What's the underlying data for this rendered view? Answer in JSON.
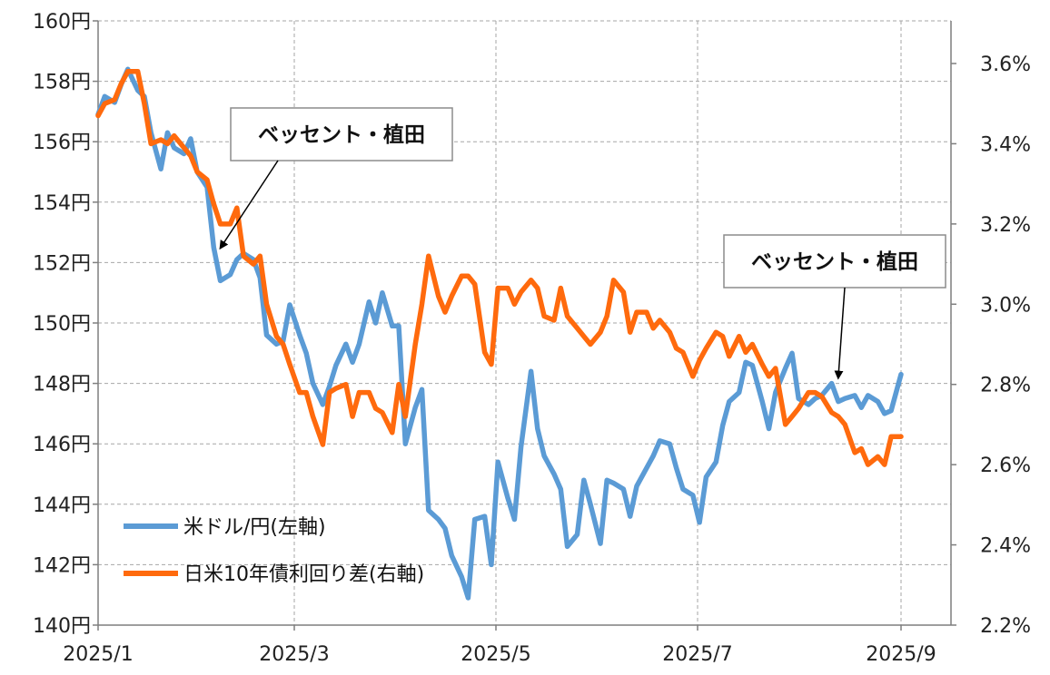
{
  "chart_data": {
    "type": "line",
    "title": "",
    "xlabel": "",
    "ylabel": "",
    "x_ticks": [
      "2025/1",
      "2025/3",
      "2025/5",
      "2025/7",
      "2025/9"
    ],
    "y_left": {
      "min": 140,
      "max": 160,
      "step": 2,
      "tick_labels": [
        "140円",
        "142円",
        "144円",
        "146円",
        "148円",
        "150円",
        "152円",
        "154円",
        "156円",
        "158円",
        "160円"
      ]
    },
    "y_right": {
      "min": 2.2,
      "max": 3.7,
      "step": 0.2,
      "tick_labels": [
        "2.2%",
        "2.4%",
        "2.6%",
        "2.8%",
        "3.0%",
        "3.2%",
        "3.4%",
        "3.6%"
      ]
    },
    "grid": "dashed",
    "legend_position": "bottom-left",
    "series": [
      {
        "name": "米ドル/円(左軸)",
        "axis": "left",
        "color": "#5b9bd5",
        "points": [
          [
            "2025-01-01",
            156.9
          ],
          [
            "2025-01-03",
            157.5
          ],
          [
            "2025-01-06",
            157.3
          ],
          [
            "2025-01-08",
            157.9
          ],
          [
            "2025-01-10",
            158.4
          ],
          [
            "2025-01-13",
            157.7
          ],
          [
            "2025-01-15",
            157.5
          ],
          [
            "2025-01-17",
            156.3
          ],
          [
            "2025-01-20",
            155.1
          ],
          [
            "2025-01-22",
            156.3
          ],
          [
            "2025-01-24",
            155.8
          ],
          [
            "2025-01-27",
            155.6
          ],
          [
            "2025-01-29",
            156.1
          ],
          [
            "2025-01-31",
            155.0
          ],
          [
            "2025-02-03",
            154.5
          ],
          [
            "2025-02-05",
            152.5
          ],
          [
            "2025-02-07",
            151.4
          ],
          [
            "2025-02-10",
            151.6
          ],
          [
            "2025-02-12",
            152.1
          ],
          [
            "2025-02-14",
            152.3
          ],
          [
            "2025-02-17",
            152.1
          ],
          [
            "2025-02-19",
            151.5
          ],
          [
            "2025-02-21",
            149.6
          ],
          [
            "2025-02-24",
            149.3
          ],
          [
            "2025-02-26",
            149.4
          ],
          [
            "2025-02-28",
            150.6
          ],
          [
            "2025-03-03",
            149.6
          ],
          [
            "2025-03-05",
            149.0
          ],
          [
            "2025-03-07",
            148.0
          ],
          [
            "2025-03-10",
            147.3
          ],
          [
            "2025-03-12",
            147.9
          ],
          [
            "2025-03-14",
            148.6
          ],
          [
            "2025-03-17",
            149.3
          ],
          [
            "2025-03-19",
            148.7
          ],
          [
            "2025-03-21",
            149.3
          ],
          [
            "2025-03-24",
            150.7
          ],
          [
            "2025-03-26",
            150.0
          ],
          [
            "2025-03-28",
            151.0
          ],
          [
            "2025-03-31",
            149.9
          ],
          [
            "2025-04-02",
            149.9
          ],
          [
            "2025-04-04",
            146.0
          ],
          [
            "2025-04-07",
            147.2
          ],
          [
            "2025-04-09",
            147.8
          ],
          [
            "2025-04-11",
            143.8
          ],
          [
            "2025-04-14",
            143.5
          ],
          [
            "2025-04-16",
            143.2
          ],
          [
            "2025-04-18",
            142.3
          ],
          [
            "2025-04-21",
            141.6
          ],
          [
            "2025-04-23",
            140.9
          ],
          [
            "2025-04-25",
            143.5
          ],
          [
            "2025-04-28",
            143.6
          ],
          [
            "2025-04-30",
            142.0
          ],
          [
            "2025-05-02",
            145.4
          ],
          [
            "2025-05-05",
            144.2
          ],
          [
            "2025-05-07",
            143.5
          ],
          [
            "2025-05-09",
            145.9
          ],
          [
            "2025-05-12",
            148.4
          ],
          [
            "2025-05-14",
            146.5
          ],
          [
            "2025-05-16",
            145.6
          ],
          [
            "2025-05-19",
            145.0
          ],
          [
            "2025-05-21",
            144.5
          ],
          [
            "2025-05-23",
            142.6
          ],
          [
            "2025-05-26",
            143.0
          ],
          [
            "2025-05-28",
            144.8
          ],
          [
            "2025-05-30",
            144.0
          ],
          [
            "2025-06-02",
            142.7
          ],
          [
            "2025-06-04",
            144.8
          ],
          [
            "2025-06-06",
            144.7
          ],
          [
            "2025-06-09",
            144.5
          ],
          [
            "2025-06-11",
            143.6
          ],
          [
            "2025-06-13",
            144.6
          ],
          [
            "2025-06-16",
            145.2
          ],
          [
            "2025-06-18",
            145.6
          ],
          [
            "2025-06-20",
            146.1
          ],
          [
            "2025-06-23",
            146.0
          ],
          [
            "2025-06-25",
            145.2
          ],
          [
            "2025-06-27",
            144.5
          ],
          [
            "2025-06-30",
            144.3
          ],
          [
            "2025-07-02",
            143.4
          ],
          [
            "2025-07-04",
            144.9
          ],
          [
            "2025-07-07",
            145.4
          ],
          [
            "2025-07-09",
            146.6
          ],
          [
            "2025-07-11",
            147.4
          ],
          [
            "2025-07-14",
            147.7
          ],
          [
            "2025-07-16",
            148.7
          ],
          [
            "2025-07-18",
            148.6
          ],
          [
            "2025-07-21",
            147.4
          ],
          [
            "2025-07-23",
            146.5
          ],
          [
            "2025-07-25",
            147.7
          ],
          [
            "2025-07-28",
            148.5
          ],
          [
            "2025-07-30",
            149.0
          ],
          [
            "2025-08-01",
            147.5
          ],
          [
            "2025-08-04",
            147.3
          ],
          [
            "2025-08-06",
            147.5
          ],
          [
            "2025-08-08",
            147.6
          ],
          [
            "2025-08-11",
            148.0
          ],
          [
            "2025-08-13",
            147.4
          ],
          [
            "2025-08-15",
            147.5
          ],
          [
            "2025-08-18",
            147.6
          ],
          [
            "2025-08-20",
            147.2
          ],
          [
            "2025-08-22",
            147.6
          ],
          [
            "2025-08-25",
            147.4
          ],
          [
            "2025-08-27",
            147.0
          ],
          [
            "2025-08-29",
            147.1
          ],
          [
            "2025-09-01",
            148.3
          ]
        ]
      },
      {
        "name": "日米10年債利回り差(右軸)",
        "axis": "right",
        "color": "#ff6a0d",
        "points": [
          [
            "2025-01-01",
            3.47
          ],
          [
            "2025-01-03",
            3.5
          ],
          [
            "2025-01-06",
            3.51
          ],
          [
            "2025-01-08",
            3.55
          ],
          [
            "2025-01-10",
            3.58
          ],
          [
            "2025-01-13",
            3.58
          ],
          [
            "2025-01-15",
            3.5
          ],
          [
            "2025-01-17",
            3.4
          ],
          [
            "2025-01-20",
            3.41
          ],
          [
            "2025-01-22",
            3.4
          ],
          [
            "2025-01-24",
            3.42
          ],
          [
            "2025-01-27",
            3.39
          ],
          [
            "2025-01-29",
            3.37
          ],
          [
            "2025-01-31",
            3.33
          ],
          [
            "2025-02-03",
            3.31
          ],
          [
            "2025-02-05",
            3.25
          ],
          [
            "2025-02-07",
            3.2
          ],
          [
            "2025-02-10",
            3.2
          ],
          [
            "2025-02-12",
            3.24
          ],
          [
            "2025-02-14",
            3.12
          ],
          [
            "2025-02-17",
            3.1
          ],
          [
            "2025-02-19",
            3.12
          ],
          [
            "2025-02-21",
            3.0
          ],
          [
            "2025-02-24",
            2.92
          ],
          [
            "2025-02-26",
            2.9
          ],
          [
            "2025-02-28",
            2.85
          ],
          [
            "2025-03-03",
            2.78
          ],
          [
            "2025-03-05",
            2.78
          ],
          [
            "2025-03-07",
            2.72
          ],
          [
            "2025-03-10",
            2.65
          ],
          [
            "2025-03-12",
            2.78
          ],
          [
            "2025-03-14",
            2.79
          ],
          [
            "2025-03-17",
            2.8
          ],
          [
            "2025-03-19",
            2.72
          ],
          [
            "2025-03-21",
            2.78
          ],
          [
            "2025-03-24",
            2.78
          ],
          [
            "2025-03-26",
            2.74
          ],
          [
            "2025-03-28",
            2.73
          ],
          [
            "2025-03-31",
            2.68
          ],
          [
            "2025-04-02",
            2.8
          ],
          [
            "2025-04-04",
            2.72
          ],
          [
            "2025-04-07",
            2.9
          ],
          [
            "2025-04-09",
            3.0
          ],
          [
            "2025-04-11",
            3.12
          ],
          [
            "2025-04-14",
            3.02
          ],
          [
            "2025-04-16",
            2.98
          ],
          [
            "2025-04-18",
            3.02
          ],
          [
            "2025-04-21",
            3.07
          ],
          [
            "2025-04-23",
            3.07
          ],
          [
            "2025-04-25",
            3.05
          ],
          [
            "2025-04-28",
            2.88
          ],
          [
            "2025-04-30",
            2.85
          ],
          [
            "2025-05-02",
            3.04
          ],
          [
            "2025-05-05",
            3.04
          ],
          [
            "2025-05-07",
            3.0
          ],
          [
            "2025-05-09",
            3.03
          ],
          [
            "2025-05-12",
            3.06
          ],
          [
            "2025-05-14",
            3.04
          ],
          [
            "2025-05-16",
            2.97
          ],
          [
            "2025-05-19",
            2.96
          ],
          [
            "2025-05-21",
            3.04
          ],
          [
            "2025-05-23",
            2.97
          ],
          [
            "2025-05-26",
            2.94
          ],
          [
            "2025-05-28",
            2.92
          ],
          [
            "2025-05-30",
            2.9
          ],
          [
            "2025-06-02",
            2.93
          ],
          [
            "2025-06-04",
            2.97
          ],
          [
            "2025-06-06",
            3.06
          ],
          [
            "2025-06-09",
            3.03
          ],
          [
            "2025-06-11",
            2.93
          ],
          [
            "2025-06-13",
            2.98
          ],
          [
            "2025-06-16",
            2.98
          ],
          [
            "2025-06-18",
            2.94
          ],
          [
            "2025-06-20",
            2.96
          ],
          [
            "2025-06-23",
            2.93
          ],
          [
            "2025-06-25",
            2.89
          ],
          [
            "2025-06-27",
            2.88
          ],
          [
            "2025-06-30",
            2.82
          ],
          [
            "2025-07-02",
            2.86
          ],
          [
            "2025-07-04",
            2.89
          ],
          [
            "2025-07-07",
            2.93
          ],
          [
            "2025-07-09",
            2.92
          ],
          [
            "2025-07-11",
            2.87
          ],
          [
            "2025-07-14",
            2.92
          ],
          [
            "2025-07-16",
            2.88
          ],
          [
            "2025-07-18",
            2.9
          ],
          [
            "2025-07-21",
            2.85
          ],
          [
            "2025-07-23",
            2.82
          ],
          [
            "2025-07-25",
            2.84
          ],
          [
            "2025-07-28",
            2.7
          ],
          [
            "2025-07-30",
            2.72
          ],
          [
            "2025-08-01",
            2.74
          ],
          [
            "2025-08-04",
            2.78
          ],
          [
            "2025-08-06",
            2.78
          ],
          [
            "2025-08-08",
            2.77
          ],
          [
            "2025-08-11",
            2.73
          ],
          [
            "2025-08-13",
            2.72
          ],
          [
            "2025-08-15",
            2.7
          ],
          [
            "2025-08-18",
            2.63
          ],
          [
            "2025-08-20",
            2.64
          ],
          [
            "2025-08-22",
            2.6
          ],
          [
            "2025-08-25",
            2.62
          ],
          [
            "2025-08-27",
            2.6
          ],
          [
            "2025-08-29",
            2.67
          ],
          [
            "2025-09-01",
            2.67
          ]
        ]
      }
    ],
    "annotations": [
      {
        "text": "ベッセント・植田",
        "date": "2025-02-07",
        "axis": "left",
        "value": 152.3
      },
      {
        "text": "ベッセント・植田",
        "date": "2025-08-13",
        "axis": "left",
        "value": 148.0
      }
    ]
  }
}
